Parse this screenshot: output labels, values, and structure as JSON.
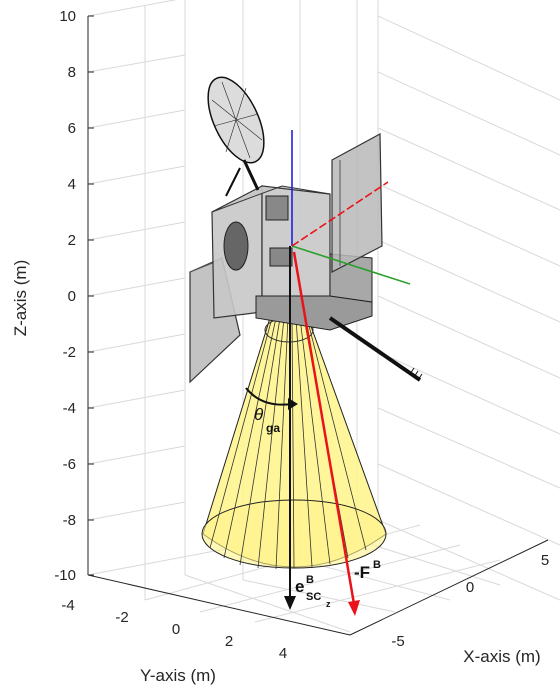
{
  "axes": {
    "z_label": "Z-axis (m)",
    "y_label": "Y-axis (m)",
    "x_label": "X-axis (m)",
    "z_ticks": [
      "10",
      "8",
      "6",
      "4",
      "2",
      "0",
      "-2",
      "-4",
      "-6",
      "-8",
      "-10"
    ],
    "y_ticks": [
      "-4",
      "-2",
      "0",
      "2",
      "4"
    ],
    "x_ticks": [
      "5",
      "0",
      "-5"
    ]
  },
  "annotations": {
    "theta": "θ",
    "theta_sub": "ga",
    "e_main": "e",
    "e_sup": "B",
    "e_sub": "SC",
    "e_subsub": "z",
    "f_main": "-F",
    "f_sup": "B"
  },
  "colors": {
    "cone_fill": "#fff48a",
    "force_vector": "#e8141a",
    "body_x": "#2ca02c",
    "body_y": "#e8141a",
    "body_z": "#1f1fe0",
    "panel": "#b8b8b8",
    "bus": "#c8c8c8"
  }
}
